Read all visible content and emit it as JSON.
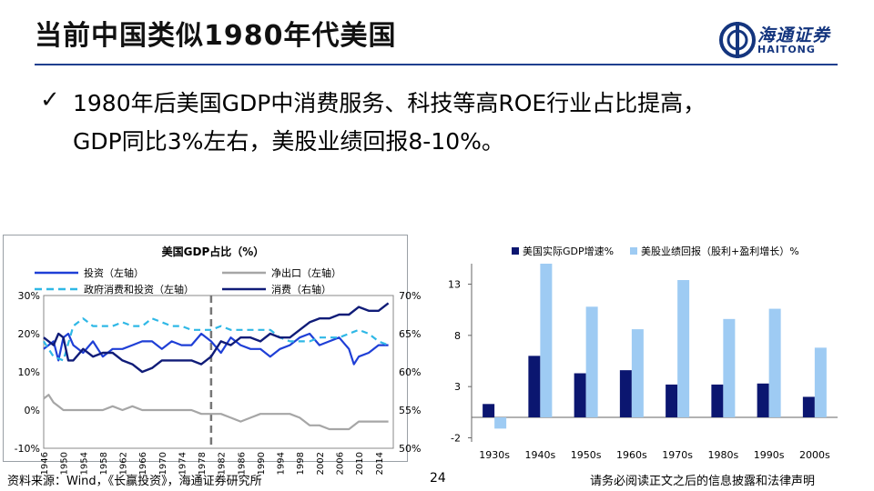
{
  "header": {
    "title": "当前中国类似1980年代美国",
    "logo_cn": "海通证券",
    "logo_en": "HAITONG"
  },
  "bullet": {
    "line1": "1980年后美国GDP中消费服务、科技等高ROE行业占比提高，",
    "line2": "GDP同比3%左右，美股业绩回报8-10%。"
  },
  "footer": {
    "source": "资料来源：Wind，《长赢投资》，海通证券研究所",
    "page": "24",
    "disclaimer": "请务必阅读正文之后的信息披露和法律声明"
  },
  "colors": {
    "title_rule": "#1f3f8f",
    "invest": "#1f3fd6",
    "netexport": "#a6a6a6",
    "gov": "#2fb8e6",
    "consume": "#101c78",
    "gdp_bar": "#0b1670",
    "return_bar": "#9ecbf3"
  },
  "chart_data": [
    {
      "type": "line",
      "title": "美国GDP占比（%）",
      "x_ticks": [
        "1946",
        "1950",
        "1954",
        "1958",
        "1962",
        "1966",
        "1970",
        "1974",
        "1978",
        "1982",
        "1986",
        "1990",
        "1994",
        "1998",
        "2002",
        "2006",
        "2010",
        "2014"
      ],
      "y_left_ticks": [
        "30%",
        "20%",
        "10%",
        "0%",
        "-10%"
      ],
      "y_left_range": [
        -10,
        30
      ],
      "y_right_ticks": [
        "70%",
        "65%",
        "60%",
        "55%",
        "50%"
      ],
      "y_right_range": [
        50,
        70
      ],
      "vline_x": 1980,
      "series": [
        {
          "name": "投资（左轴）",
          "axis": "left",
          "x": [
            1946,
            1947,
            1948,
            1949,
            1950,
            1951,
            1952,
            1954,
            1956,
            1958,
            1960,
            1962,
            1964,
            1966,
            1968,
            1970,
            1972,
            1974,
            1976,
            1978,
            1980,
            1982,
            1984,
            1986,
            1988,
            1990,
            1992,
            1994,
            1996,
            1998,
            2000,
            2002,
            2004,
            2006,
            2008,
            2009,
            2010,
            2012,
            2014,
            2016
          ],
          "y": [
            16,
            17,
            18,
            13,
            19,
            20,
            17,
            15,
            18,
            14,
            16,
            16,
            17,
            18,
            18,
            16,
            18,
            17,
            17,
            20,
            18,
            15,
            19,
            17,
            16,
            16,
            14,
            16,
            17,
            19,
            20,
            17,
            18,
            19,
            16,
            12,
            14,
            15,
            17,
            17
          ]
        },
        {
          "name": "净出口（左轴）",
          "axis": "left",
          "x": [
            1946,
            1947,
            1948,
            1949,
            1950,
            1952,
            1954,
            1956,
            1958,
            1960,
            1962,
            1964,
            1966,
            1968,
            1970,
            1972,
            1974,
            1976,
            1978,
            1980,
            1982,
            1984,
            1986,
            1988,
            1990,
            1992,
            1994,
            1996,
            1998,
            2000,
            2002,
            2004,
            2006,
            2008,
            2010,
            2012,
            2014,
            2016
          ],
          "y": [
            3,
            4,
            2,
            1,
            0,
            0,
            0,
            0,
            0,
            1,
            0,
            1,
            0,
            0,
            0,
            0,
            0,
            0,
            -1,
            -1,
            -1,
            -2,
            -3,
            -2,
            -1,
            -1,
            -1,
            -1,
            -2,
            -4,
            -4,
            -5,
            -5,
            -5,
            -3,
            -3,
            -3,
            -3
          ]
        },
        {
          "name": "政府消费和投资（左轴）",
          "axis": "left",
          "x": [
            1946,
            1948,
            1950,
            1952,
            1954,
            1956,
            1958,
            1960,
            1962,
            1964,
            1966,
            1968,
            1970,
            1972,
            1974,
            1976,
            1978,
            1980,
            1982,
            1984,
            1986,
            1988,
            1990,
            1992,
            1994,
            1996,
            1998,
            2000,
            2002,
            2004,
            2006,
            2008,
            2010,
            2012,
            2014,
            2016
          ],
          "y": [
            18,
            14,
            13,
            22,
            24,
            22,
            22,
            22,
            23,
            22,
            22,
            24,
            23,
            22,
            22,
            21,
            21,
            21,
            22,
            21,
            21,
            21,
            21,
            21,
            19,
            18,
            18,
            18,
            19,
            19,
            19,
            20,
            21,
            20,
            18,
            17
          ]
        },
        {
          "name": "消费（右轴）",
          "axis": "right",
          "x": [
            1946,
            1947,
            1948,
            1949,
            1950,
            1951,
            1952,
            1954,
            1956,
            1958,
            1960,
            1962,
            1964,
            1966,
            1968,
            1970,
            1972,
            1974,
            1976,
            1978,
            1980,
            1982,
            1984,
            1986,
            1988,
            1990,
            1992,
            1994,
            1996,
            1998,
            2000,
            2002,
            2004,
            2006,
            2008,
            2010,
            2012,
            2014,
            2016
          ],
          "y": [
            64.5,
            64,
            63.5,
            65,
            64.5,
            61.5,
            61.5,
            63,
            62,
            62.5,
            62.5,
            61.5,
            61,
            60,
            60.5,
            61.5,
            61.5,
            61.5,
            61.5,
            61,
            62,
            64,
            63.5,
            64.5,
            64.5,
            64,
            65,
            64.5,
            64.5,
            65.5,
            66.5,
            67,
            67,
            67.5,
            67.5,
            68.5,
            68,
            68,
            69
          ]
        }
      ]
    },
    {
      "type": "bar",
      "categories": [
        "1930s",
        "1940s",
        "1950s",
        "1960s",
        "1970s",
        "1980s",
        "1990s",
        "2000s"
      ],
      "y_ticks": [
        13,
        8,
        3,
        -2
      ],
      "ylim": [
        -2.4,
        15
      ],
      "series": [
        {
          "name": "美国实际GDP增速%",
          "values": [
            1.3,
            6.0,
            4.3,
            4.6,
            3.2,
            3.2,
            3.3,
            2.0
          ]
        },
        {
          "name": "美股业绩回报（股利+盈利增长）%",
          "values": [
            -1.1,
            15.0,
            10.8,
            8.6,
            13.4,
            9.6,
            10.6,
            6.8
          ]
        }
      ]
    }
  ]
}
